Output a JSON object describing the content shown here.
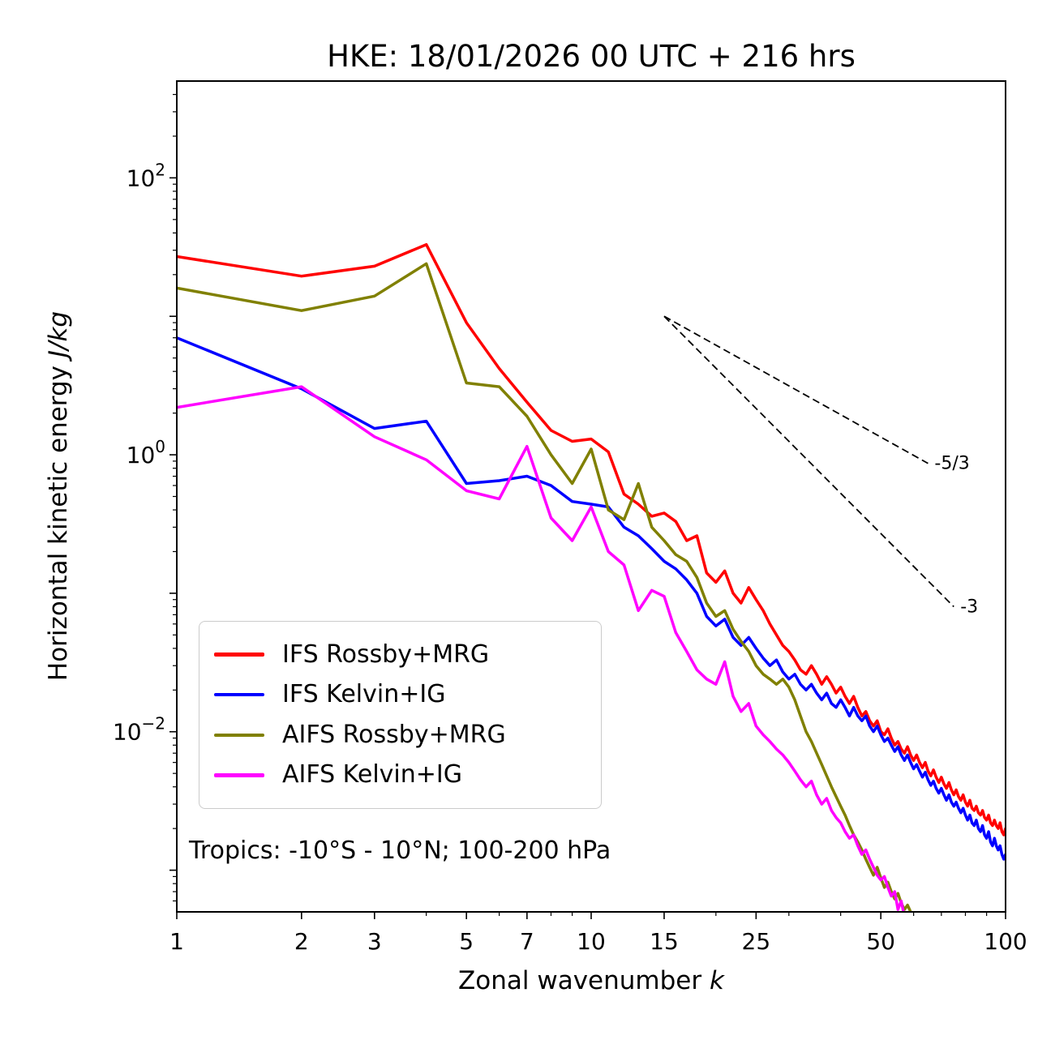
{
  "chart_data": {
    "type": "line",
    "title": "HKE: 18/01/2026 00 UTC + 216 hrs",
    "xlabel": "Zonal wavenumber k",
    "ylabel": "Horizontal kinetic energy J/kg",
    "xlabel_parts": {
      "text": "Zonal wavenumber ",
      "math": "k"
    },
    "ylabel_parts": {
      "text": "Horizontal kinetic energy ",
      "math": "J/kg"
    },
    "annotation": "Tropics: -10°S - 10°N; 100-200 hPa",
    "x_scale": "log",
    "y_scale": "log",
    "grid": false,
    "legend_position": "lower left",
    "xlim": [
      1,
      100
    ],
    "ylim": [
      0.0005,
      500
    ],
    "x_ticks": [
      1,
      2,
      3,
      5,
      7,
      10,
      15,
      25,
      50,
      100
    ],
    "x_tick_labels": [
      "1",
      "2",
      "3",
      "5",
      "7",
      "10",
      "15",
      "25",
      "50",
      "100"
    ],
    "x_minor_ticks": [
      4,
      6,
      8,
      9,
      20,
      30,
      40,
      60,
      70,
      80,
      90
    ],
    "y_tick_exponents": [
      2,
      0,
      -2
    ],
    "x_definition": "zonal wavenumber k = array index + 1",
    "reference_lines": [
      {
        "label": "-5/3",
        "slope": -1.667,
        "x": [
          15,
          65
        ],
        "y": [
          10,
          0.867
        ],
        "style": "dashed",
        "color": "#000000"
      },
      {
        "label": "-3",
        "slope": -3,
        "x": [
          15,
          75
        ],
        "y": [
          10,
          0.08
        ],
        "style": "dashed",
        "color": "#000000"
      }
    ],
    "series": [
      {
        "name": "IFS Rossby+MRG",
        "color": "#ff0000",
        "y": [
          27,
          19.5,
          23,
          33,
          9.0,
          4.2,
          2.4,
          1.5,
          1.25,
          1.3,
          1.05,
          0.52,
          0.44,
          0.36,
          0.38,
          0.33,
          0.24,
          0.26,
          0.14,
          0.12,
          0.145,
          0.1,
          0.085,
          0.11,
          0.09,
          0.075,
          0.06,
          0.05,
          0.042,
          0.038,
          0.033,
          0.028,
          0.026,
          0.03,
          0.026,
          0.022,
          0.025,
          0.022,
          0.019,
          0.021,
          0.018,
          0.016,
          0.018,
          0.015,
          0.013,
          0.014,
          0.012,
          0.011,
          0.012,
          0.01,
          0.0095,
          0.0105,
          0.009,
          0.008,
          0.0085,
          0.0075,
          0.007,
          0.0078,
          0.0068,
          0.0062,
          0.0068,
          0.006,
          0.0055,
          0.006,
          0.0052,
          0.0048,
          0.0053,
          0.0047,
          0.0043,
          0.0047,
          0.0042,
          0.0039,
          0.0043,
          0.0038,
          0.0035,
          0.0038,
          0.0034,
          0.0032,
          0.0035,
          0.0031,
          0.0029,
          0.0032,
          0.0028,
          0.0027,
          0.0029,
          0.0026,
          0.0025,
          0.0027,
          0.0024,
          0.0023,
          0.0025,
          0.0022,
          0.0021,
          0.0023,
          0.0021,
          0.002,
          0.0022,
          0.0019,
          0.0018,
          0.002
        ]
      },
      {
        "name": "IFS Kelvin+IG",
        "color": "#0000ff",
        "y": [
          7.0,
          3.0,
          1.55,
          1.75,
          0.62,
          0.65,
          0.7,
          0.6,
          0.46,
          0.44,
          0.42,
          0.3,
          0.26,
          0.21,
          0.17,
          0.15,
          0.125,
          0.1,
          0.068,
          0.058,
          0.065,
          0.048,
          0.042,
          0.048,
          0.04,
          0.034,
          0.03,
          0.033,
          0.027,
          0.024,
          0.026,
          0.022,
          0.02,
          0.022,
          0.019,
          0.017,
          0.019,
          0.016,
          0.015,
          0.017,
          0.015,
          0.013,
          0.015,
          0.013,
          0.012,
          0.013,
          0.011,
          0.01,
          0.011,
          0.0095,
          0.0085,
          0.009,
          0.008,
          0.0072,
          0.0078,
          0.0068,
          0.0062,
          0.0068,
          0.006,
          0.0054,
          0.0058,
          0.0052,
          0.0047,
          0.0051,
          0.0045,
          0.0041,
          0.0044,
          0.0039,
          0.0036,
          0.0039,
          0.0035,
          0.0032,
          0.0035,
          0.0031,
          0.0029,
          0.0031,
          0.0028,
          0.0026,
          0.0028,
          0.0025,
          0.0023,
          0.0025,
          0.0022,
          0.0021,
          0.0023,
          0.002,
          0.0019,
          0.0021,
          0.0018,
          0.0017,
          0.0019,
          0.0016,
          0.0015,
          0.0017,
          0.0015,
          0.0014,
          0.0015,
          0.0013,
          0.0012,
          0.0013
        ]
      },
      {
        "name": "AIFS Rossby+MRG",
        "color": "#808000",
        "y": [
          16,
          11,
          14,
          24,
          3.3,
          3.1,
          1.9,
          1.0,
          0.62,
          1.1,
          0.4,
          0.34,
          0.62,
          0.3,
          0.24,
          0.19,
          0.17,
          0.13,
          0.085,
          0.068,
          0.075,
          0.055,
          0.045,
          0.038,
          0.03,
          0.026,
          0.024,
          0.022,
          0.024,
          0.021,
          0.017,
          0.013,
          0.01,
          0.0085,
          0.007,
          0.0058,
          0.0048,
          0.004,
          0.0034,
          0.0029,
          0.0025,
          0.0021,
          0.0018,
          0.0016,
          0.0014,
          0.0012,
          0.00105,
          0.00092,
          0.00105,
          0.00088,
          0.00075,
          0.00082,
          0.0007,
          0.00062,
          0.00068,
          0.00058,
          0.00052,
          0.00056,
          0.0005,
          0.00045,
          0.00048,
          0.00042,
          0.00038,
          0.0004,
          0.00035,
          0.0003
        ]
      },
      {
        "name": "AIFS Kelvin+IG",
        "color": "#ff00ff",
        "y": [
          2.2,
          3.1,
          1.35,
          0.92,
          0.55,
          0.48,
          1.15,
          0.35,
          0.24,
          0.42,
          0.2,
          0.16,
          0.075,
          0.105,
          0.095,
          0.052,
          0.038,
          0.028,
          0.024,
          0.022,
          0.032,
          0.018,
          0.014,
          0.016,
          0.011,
          0.0095,
          0.0085,
          0.0075,
          0.0068,
          0.006,
          0.0052,
          0.0045,
          0.004,
          0.0044,
          0.0035,
          0.003,
          0.0033,
          0.0027,
          0.0024,
          0.0022,
          0.0019,
          0.0017,
          0.0018,
          0.0015,
          0.0013,
          0.0014,
          0.0012,
          0.00105,
          0.00092,
          0.00085,
          0.0009,
          0.00075,
          0.00065,
          0.0007,
          0.00052,
          0.0006,
          0.00046,
          0.00038
        ]
      }
    ]
  }
}
